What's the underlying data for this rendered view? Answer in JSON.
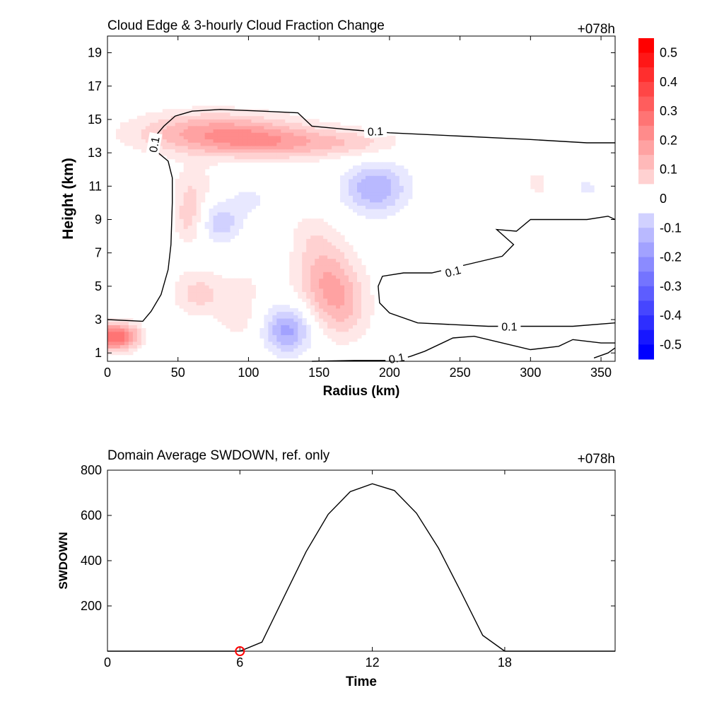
{
  "chart_data": [
    {
      "type": "heatmap",
      "title": "Cloud Edge & 3-hourly Cloud Fraction Change",
      "time_label": "+078h",
      "xlabel": "Radius (km)",
      "ylabel": "Height (km)",
      "xlim": [
        0,
        360
      ],
      "ylim": [
        0.5,
        20
      ],
      "xticks": [
        0,
        50,
        100,
        150,
        200,
        250,
        300,
        350
      ],
      "yticks": [
        1,
        3,
        5,
        7,
        9,
        11,
        13,
        15,
        17,
        19
      ],
      "colorbar": {
        "min": -0.55,
        "max": 0.55,
        "step": 0.05,
        "ticks": [
          0.5,
          0.4,
          0.3,
          0.2,
          0.1,
          0,
          -0.1,
          -0.2,
          -0.3,
          -0.4,
          -0.5
        ],
        "positive_color": "#ff0000",
        "negative_color": "#0000ff"
      },
      "anomalies": [
        {
          "r": 75,
          "z": 14.2,
          "sr": 40,
          "sz": 0.9,
          "v": 0.22
        },
        {
          "r": 125,
          "z": 13.6,
          "sr": 35,
          "sz": 0.7,
          "v": 0.16
        },
        {
          "r": 180,
          "z": 13.6,
          "sr": 22,
          "sz": 0.6,
          "v": 0.08
        },
        {
          "r": 5,
          "z": 2.0,
          "sr": 14,
          "sz": 0.6,
          "v": 0.35
        },
        {
          "r": 58,
          "z": 9.2,
          "sr": 8,
          "sz": 1.2,
          "v": 0.13
        },
        {
          "r": 62,
          "z": 11.2,
          "sr": 12,
          "sz": 0.9,
          "v": 0.06
        },
        {
          "r": 155,
          "z": 5.5,
          "sr": 16,
          "sz": 1.6,
          "v": 0.18
        },
        {
          "r": 167,
          "z": 3.5,
          "sr": 14,
          "sz": 1.4,
          "v": 0.12
        },
        {
          "r": 145,
          "z": 8.2,
          "sr": 12,
          "sz": 1.0,
          "v": 0.06
        },
        {
          "r": 65,
          "z": 4.6,
          "sr": 15,
          "sz": 1.0,
          "v": 0.12
        },
        {
          "r": 93,
          "z": 3.2,
          "sr": 10,
          "sz": 1.0,
          "v": 0.08
        },
        {
          "r": 98,
          "z": 5.0,
          "sr": 8,
          "sz": 0.7,
          "v": 0.05
        },
        {
          "r": 305,
          "z": 11.2,
          "sr": 8,
          "sz": 0.9,
          "v": 0.06
        },
        {
          "r": 260,
          "z": 10.5,
          "sr": 10,
          "sz": 0.6,
          "v": 0.03
        },
        {
          "r": 190,
          "z": 10.9,
          "sr": 16,
          "sz": 1.1,
          "v": -0.2
        },
        {
          "r": 128,
          "z": 2.4,
          "sr": 12,
          "sz": 1.0,
          "v": -0.22
        },
        {
          "r": 80,
          "z": 8.8,
          "sr": 10,
          "sz": 0.8,
          "v": -0.14
        },
        {
          "r": 100,
          "z": 10.2,
          "sr": 12,
          "sz": 0.8,
          "v": -0.06
        },
        {
          "r": 210,
          "z": 7.2,
          "sr": 16,
          "sz": 0.5,
          "v": -0.04
        },
        {
          "r": 40,
          "z": 5.5,
          "sr": 6,
          "sz": 2.0,
          "v": -0.03
        },
        {
          "r": 30,
          "z": 1.8,
          "sr": 8,
          "sz": 1.0,
          "v": -0.04
        },
        {
          "r": 340,
          "z": 10.9,
          "sr": 8,
          "sz": 0.5,
          "v": -0.06
        }
      ],
      "contours": [
        {
          "value": 0.1,
          "label": "0.1",
          "points": [
            [
              0,
              3.0
            ],
            [
              25,
              2.9
            ],
            [
              31,
              3.5
            ],
            [
              38,
              4.5
            ],
            [
              43,
              6.0
            ],
            [
              45,
              7.5
            ],
            [
              46,
              10.0
            ],
            [
              46,
              11.5
            ],
            [
              43,
              12.5
            ],
            [
              36,
              13.0
            ],
            [
              32,
              13.5
            ],
            [
              34,
              14.0
            ],
            [
              40,
              14.6
            ],
            [
              48,
              15.2
            ],
            [
              60,
              15.5
            ],
            [
              80,
              15.6
            ],
            [
              110,
              15.5
            ],
            [
              135,
              15.4
            ],
            [
              145,
              14.6
            ],
            [
              170,
              14.4
            ],
            [
              200,
              14.2
            ],
            [
              250,
              14.0
            ],
            [
              300,
              13.8
            ],
            [
              340,
              13.6
            ],
            [
              360,
              13.6
            ]
          ],
          "labels_at": [
            [
              33,
              13.5,
              -80
            ],
            [
              190,
              14.3,
              -3
            ]
          ]
        },
        {
          "value": 0.1,
          "label": "0.1",
          "points": [
            [
              360,
              9.0
            ],
            [
              355,
              9.2
            ],
            [
              340,
              9.0
            ],
            [
              320,
              9.0
            ],
            [
              300,
              9.0
            ],
            [
              290,
              8.3
            ],
            [
              276,
              8.4
            ],
            [
              288,
              7.5
            ],
            [
              280,
              6.8
            ],
            [
              250,
              6.2
            ],
            [
              240,
              6.0
            ],
            [
              230,
              5.8
            ],
            [
              210,
              5.8
            ],
            [
              195,
              5.6
            ],
            [
              192,
              5.0
            ],
            [
              193,
              4.0
            ],
            [
              200,
              3.4
            ],
            [
              220,
              2.8
            ],
            [
              270,
              2.6
            ],
            [
              330,
              2.6
            ],
            [
              360,
              2.8
            ]
          ],
          "labels_at": [
            [
              245,
              5.9,
              -15
            ],
            [
              285,
              2.6,
              0
            ]
          ]
        },
        {
          "value": 0.1,
          "label": "0.1",
          "points": [
            [
              145,
              0.5
            ],
            [
              175,
              0.55
            ],
            [
              205,
              0.55
            ],
            [
              215,
              0.8
            ],
            [
              225,
              1.1
            ],
            [
              245,
              1.9
            ],
            [
              260,
              2.0
            ],
            [
              280,
              1.6
            ],
            [
              300,
              1.2
            ],
            [
              320,
              1.4
            ],
            [
              330,
              1.8
            ],
            [
              340,
              1.7
            ],
            [
              350,
              1.6
            ],
            [
              360,
              1.6
            ]
          ],
          "labels_at": [
            [
              205,
              0.7,
              -10
            ]
          ]
        },
        {
          "value": 0.1,
          "label": "",
          "points": [
            [
              345,
              0.7
            ],
            [
              355,
              1.0
            ],
            [
              360,
              1.3
            ]
          ],
          "labels_at": []
        }
      ]
    },
    {
      "type": "line",
      "title": "Domain Average SWDOWN, ref. only",
      "time_label": "+078h",
      "xlabel": "Time",
      "ylabel": "SWDOWN",
      "xlim": [
        0,
        23
      ],
      "ylim": [
        0,
        800
      ],
      "xticks": [
        0,
        6,
        12,
        18
      ],
      "yticks": [
        200,
        400,
        600,
        800
      ],
      "x": [
        0,
        1,
        2,
        3,
        4,
        5,
        6,
        7,
        8,
        9,
        10,
        11,
        12,
        13,
        14,
        15,
        16,
        17,
        18,
        19,
        20,
        21,
        22,
        23
      ],
      "values": [
        0,
        0,
        0,
        0,
        0,
        0,
        0,
        40,
        240,
        440,
        605,
        705,
        740,
        710,
        610,
        455,
        265,
        70,
        0,
        0,
        0,
        0,
        0,
        0
      ],
      "marker": {
        "x": 6,
        "y": 0,
        "color": "#ff0000"
      }
    }
  ]
}
